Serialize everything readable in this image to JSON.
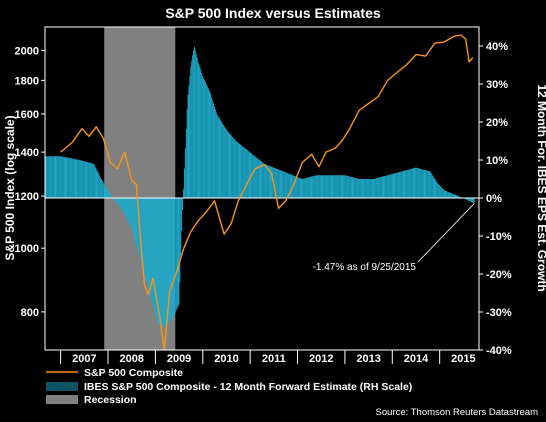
{
  "chart_data": {
    "type": "line",
    "title": "S&P 500 Index versus Estimates",
    "ylabel_left": "S&P 500 Index (log scale)",
    "ylabel_right": "12 Month For. IBES EPS Est. Growth",
    "x_ticks": [
      "2007",
      "2008",
      "2009",
      "2010",
      "2011",
      "2012",
      "2013",
      "2014",
      "2015"
    ],
    "left_ticks": [
      {
        "value": 800,
        "label": "800"
      },
      {
        "value": 1000,
        "label": "1000"
      },
      {
        "value": 1200,
        "label": "1200"
      },
      {
        "value": 1400,
        "label": "1400"
      },
      {
        "value": 1600,
        "label": "1600"
      },
      {
        "value": 1800,
        "label": "1800"
      },
      {
        "value": 2000,
        "label": "2000"
      }
    ],
    "right_ticks": [
      {
        "value": 40,
        "label": "40%"
      },
      {
        "value": 30,
        "label": "30%"
      },
      {
        "value": 20,
        "label": "20%"
      },
      {
        "value": 10,
        "label": "10%"
      },
      {
        "value": 0,
        "label": "0%"
      },
      {
        "value": -10,
        "label": "-10%"
      },
      {
        "value": -20,
        "label": "-20%"
      },
      {
        "value": -30,
        "label": "-30%"
      },
      {
        "value": -40,
        "label": "-40%"
      }
    ],
    "x_range": [
      2006.67,
      2015.83
    ],
    "left_range": [
      700,
      2170
    ],
    "left_scale": "log",
    "right_range": [
      -40,
      45
    ],
    "grid": false,
    "legend_position": "bottom-left",
    "recession": {
      "start": 2007.92,
      "end": 2009.42,
      "label": "Recession",
      "color": "#808080"
    },
    "series": [
      {
        "name": "S&P 500 Composite",
        "axis": "left",
        "color": "#f7941d",
        "x": [
          2007.0,
          2007.25,
          2007.45,
          2007.6,
          2007.75,
          2007.9,
          2008.05,
          2008.2,
          2008.35,
          2008.5,
          2008.6,
          2008.7,
          2008.77,
          2008.85,
          2008.95,
          2009.1,
          2009.19,
          2009.3,
          2009.45,
          2009.6,
          2009.75,
          2009.9,
          2010.05,
          2010.25,
          2010.45,
          2010.6,
          2010.75,
          2010.95,
          2011.1,
          2011.3,
          2011.45,
          2011.6,
          2011.75,
          2011.9,
          2012.1,
          2012.3,
          2012.45,
          2012.6,
          2012.8,
          2012.95,
          2013.1,
          2013.3,
          2013.5,
          2013.7,
          2013.9,
          2014.1,
          2014.3,
          2014.5,
          2014.7,
          2014.9,
          2015.1,
          2015.3,
          2015.45,
          2015.55,
          2015.62,
          2015.7
        ],
        "values": [
          1400,
          1450,
          1520,
          1480,
          1530,
          1470,
          1350,
          1320,
          1400,
          1270,
          1250,
          1000,
          880,
          850,
          900,
          780,
          700,
          860,
          920,
          1000,
          1060,
          1100,
          1130,
          1180,
          1050,
          1090,
          1180,
          1260,
          1320,
          1340,
          1300,
          1150,
          1180,
          1240,
          1350,
          1390,
          1330,
          1400,
          1420,
          1460,
          1520,
          1620,
          1660,
          1700,
          1800,
          1850,
          1900,
          1970,
          1960,
          2050,
          2060,
          2100,
          2110,
          2080,
          1920,
          1950
        ]
      },
      {
        "name": "IBES S&P 500 Composite - 12 Month Forward Estimate (RH Scale)",
        "axis": "right",
        "color": "#1fa9c9",
        "render": "columns",
        "x": [
          2006.67,
          2007.0,
          2007.4,
          2007.7,
          2007.9,
          2008.1,
          2008.3,
          2008.5,
          2008.7,
          2008.9,
          2009.05,
          2009.2,
          2009.35,
          2009.5,
          2009.55,
          2009.62,
          2009.68,
          2009.75,
          2009.82,
          2009.9,
          2010.0,
          2010.15,
          2010.3,
          2010.5,
          2010.7,
          2010.9,
          2011.1,
          2011.3,
          2011.5,
          2011.7,
          2011.9,
          2012.1,
          2012.4,
          2012.7,
          2013.0,
          2013.3,
          2013.6,
          2013.9,
          2014.2,
          2014.5,
          2014.8,
          2014.95,
          2015.1,
          2015.3,
          2015.5,
          2015.73
        ],
        "values": [
          11,
          11,
          10,
          9,
          4,
          0,
          -3,
          -8,
          -17,
          -26,
          -33,
          -34,
          -32,
          -28,
          -10,
          10,
          26,
          35,
          40,
          36,
          32,
          28,
          22,
          18,
          15,
          13,
          11,
          9,
          8,
          7,
          6,
          5,
          6,
          6,
          6,
          5,
          5,
          6,
          7,
          8,
          7,
          4,
          2,
          1,
          0,
          -1.47
        ]
      }
    ],
    "annotation": "-1.47% as of 9/25/2015",
    "source": "Source: Thomson Reuters Datastream"
  }
}
